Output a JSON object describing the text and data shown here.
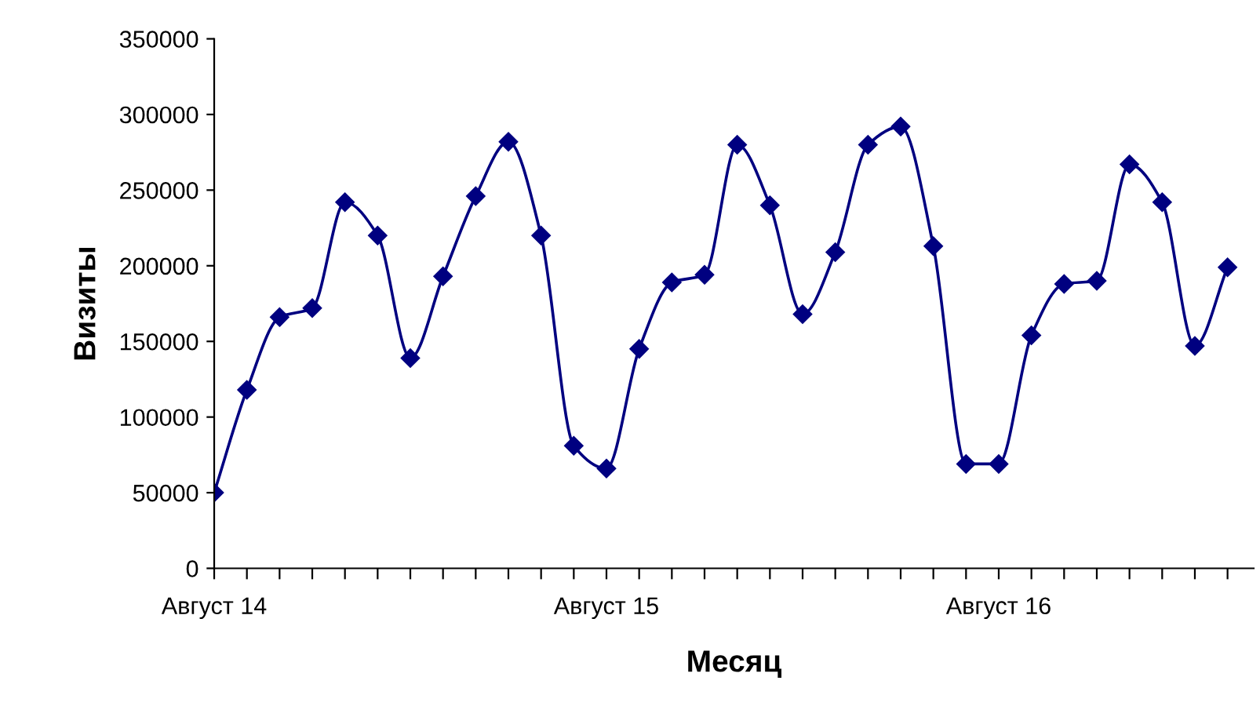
{
  "chart_data": {
    "type": "line",
    "xlabel": "Месяц",
    "ylabel": "Визиты",
    "categories": [
      "Август 14",
      null,
      null,
      null,
      null,
      null,
      null,
      null,
      null,
      null,
      null,
      null,
      "Август 15",
      null,
      null,
      null,
      null,
      null,
      null,
      null,
      null,
      null,
      null,
      null,
      "Август 16",
      null,
      null,
      null,
      null,
      null,
      null,
      null
    ],
    "series": [
      {
        "color": "#000080",
        "values": [
          50000,
          118000,
          166000,
          172000,
          242000,
          220000,
          139000,
          193000,
          246000,
          282000,
          220000,
          81000,
          66000,
          145000,
          189000,
          194000,
          280000,
          240000,
          168000,
          209000,
          280000,
          292000,
          213000,
          69000,
          69000,
          154000,
          188000,
          190000,
          267000,
          242000,
          147000,
          199000
        ]
      }
    ],
    "ylim": [
      0,
      350000
    ],
    "yticks": [
      0,
      50000,
      100000,
      150000,
      200000,
      250000,
      300000,
      350000
    ],
    "marker": "diamond",
    "line_style": "solid",
    "grid": false,
    "legend": false
  }
}
